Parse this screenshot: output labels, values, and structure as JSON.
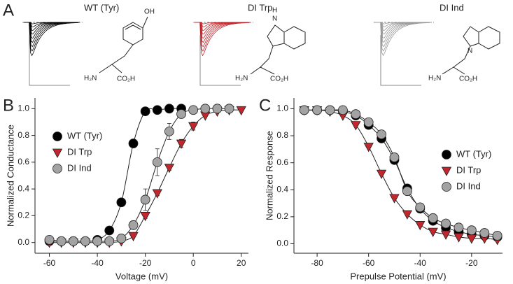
{
  "panel_labels": [
    "A",
    "B",
    "C"
  ],
  "panel_a": {
    "titles": [
      "WT (Tyr)",
      "DI Trp",
      "DI Ind"
    ],
    "structures": [
      {
        "labels": [
          "OH",
          "H₂N",
          "CO₂H"
        ]
      },
      {
        "labels": [
          "H",
          "N",
          "H₂N",
          "CO₂H"
        ]
      },
      {
        "labels": [
          "N",
          "H₂N",
          "CO₂H"
        ]
      }
    ]
  },
  "chart_data": [
    {
      "type": "scatter",
      "xlabel": "Voltage (mV)",
      "ylabel": "Normalized Conductance",
      "xlim": [
        -66,
        23
      ],
      "ylim": [
        -0.08,
        1.08
      ],
      "xticks": [
        -60,
        -40,
        -20,
        0,
        20
      ],
      "yticks": [
        {
          "value": 0,
          "label": "0.0"
        },
        0.2,
        0.4,
        0.6,
        0.8,
        {
          "value": 1,
          "label": "1.0"
        }
      ],
      "legend": "upper left",
      "series": [
        {
          "name": "WT (Tyr)",
          "color": "#000000",
          "marker": "circle",
          "x": [
            -60,
            -55,
            -50,
            -45,
            -40,
            -35,
            -30,
            -25,
            -20,
            -15,
            -10,
            -5
          ],
          "values": [
            0.01,
            0.01,
            0.01,
            0.01,
            0.02,
            0.09,
            0.3,
            0.74,
            0.98,
            0.99,
            1.0,
            1.0
          ]
        },
        {
          "name": "DI Trp",
          "color": "#c1272d",
          "marker": "triangle-down",
          "x": [
            -60,
            -55,
            -50,
            -45,
            -40,
            -35,
            -30,
            -25,
            -20,
            -15,
            -10,
            -5,
            0,
            5,
            10,
            15,
            20
          ],
          "values": [
            0.0,
            0.0,
            0.0,
            0.0,
            0.0,
            0.0,
            0.01,
            0.05,
            0.2,
            0.37,
            0.56,
            0.74,
            0.87,
            0.95,
            0.98,
            0.99,
            0.99
          ],
          "errors": [
            null,
            null,
            null,
            null,
            null,
            null,
            null,
            null,
            0.02,
            0.02,
            0.02,
            0.03,
            0.03,
            null,
            null,
            null,
            null
          ]
        },
        {
          "name": "DI Ind",
          "color": "#a3a3a3",
          "marker": "circle",
          "x": [
            -60,
            -55,
            -50,
            -45,
            -40,
            -35,
            -30,
            -25,
            -20,
            -15,
            -10,
            -5,
            0,
            5,
            10,
            15
          ],
          "values": [
            0.02,
            0.01,
            0.01,
            0.01,
            0.01,
            0.01,
            0.03,
            0.13,
            0.32,
            0.6,
            0.83,
            0.96,
            0.99,
            1.0,
            1.0,
            1.0
          ],
          "errors": [
            null,
            null,
            null,
            null,
            null,
            null,
            null,
            0.03,
            0.08,
            0.1,
            0.06,
            0.03,
            null,
            null,
            null,
            null
          ]
        }
      ]
    },
    {
      "type": "scatter",
      "xlabel": "Prepulse Potential (mV)",
      "ylabel": "Normalized Response",
      "xlim": [
        -89,
        -8
      ],
      "ylim": [
        -0.07,
        1.08
      ],
      "xticks": [
        -80,
        -60,
        -40,
        -20
      ],
      "yticks": [
        {
          "value": 0,
          "label": "0.0"
        },
        0.2,
        0.4,
        0.6,
        0.8,
        {
          "value": 1,
          "label": "1.0"
        }
      ],
      "legend": "center right",
      "series": [
        {
          "name": "WT (Tyr)",
          "color": "#000000",
          "marker": "circle",
          "x": [
            -85,
            -80,
            -75,
            -70,
            -65,
            -60,
            -55,
            -50,
            -45,
            -40,
            -35,
            -30,
            -25,
            -20,
            -15,
            -10
          ],
          "values": [
            0.99,
            0.99,
            0.99,
            0.98,
            0.95,
            0.88,
            0.78,
            0.62,
            0.41,
            0.26,
            0.17,
            0.12,
            0.09,
            0.07,
            0.06,
            0.05
          ]
        },
        {
          "name": "DI Trp",
          "color": "#c1272d",
          "marker": "triangle-down",
          "x": [
            -85,
            -80,
            -75,
            -70,
            -65,
            -60,
            -55,
            -50,
            -45,
            -40,
            -35,
            -30,
            -25,
            -20,
            -15,
            -10
          ],
          "values": [
            0.99,
            0.99,
            0.98,
            0.95,
            0.88,
            0.72,
            0.52,
            0.34,
            0.22,
            0.14,
            0.09,
            0.07,
            0.05,
            0.04,
            0.04,
            0.03
          ]
        },
        {
          "name": "DI Ind",
          "color": "#a3a3a3",
          "marker": "circle",
          "x": [
            -85,
            -80,
            -75,
            -70,
            -65,
            -60,
            -55,
            -50,
            -45,
            -40,
            -35,
            -30,
            -25,
            -20,
            -15,
            -10
          ],
          "values": [
            0.99,
            0.99,
            0.99,
            0.99,
            0.96,
            0.9,
            0.81,
            0.64,
            0.39,
            0.27,
            0.19,
            0.15,
            0.12,
            0.1,
            0.08,
            0.06
          ]
        }
      ]
    }
  ]
}
